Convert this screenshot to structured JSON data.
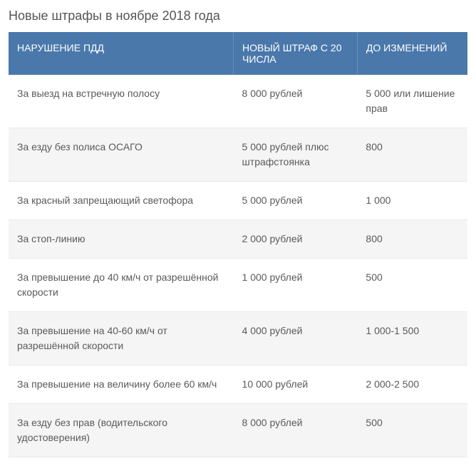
{
  "title": "Новые штрафы в ноябре 2018 года",
  "table": {
    "header_bg": "#4a78ab",
    "header_color": "#ffffff",
    "row_alt_bg": "#f5f5f5",
    "border_color": "#e8e8e8",
    "text_color": "#5a5a5a",
    "columns": [
      "НАРУШЕНИЕ ПДД",
      "НОВЫЙ ШТРАФ С 20 ЧИСЛА",
      "ДО ИЗМЕНЕНИЙ"
    ],
    "rows": [
      [
        "За выезд на встречную полосу",
        "8 000 рублей",
        "5 000 или лишение прав"
      ],
      [
        "За езду без полиса ОСАГО",
        "5 000 рублей плюс штрафстоянка",
        "800"
      ],
      [
        "За красный запрещающий светофора",
        "5 000 рублей",
        "1 000"
      ],
      [
        "За стоп-линию",
        "2 000 рублей",
        "800"
      ],
      [
        "За превышение до 40 км/ч от разрешённой скорости",
        "1 000 рублей",
        "500"
      ],
      [
        "За превышение на 40-60 км/ч от разрешённой скорости",
        "4 000 рублей",
        "1 000-1 500"
      ],
      [
        "За превышение на величину более 60 км/ч",
        "10 000 рублей",
        "2 000-2 500"
      ],
      [
        "За езду без прав (водительского удостоверения)",
        "8 000 рублей",
        "500"
      ]
    ]
  }
}
